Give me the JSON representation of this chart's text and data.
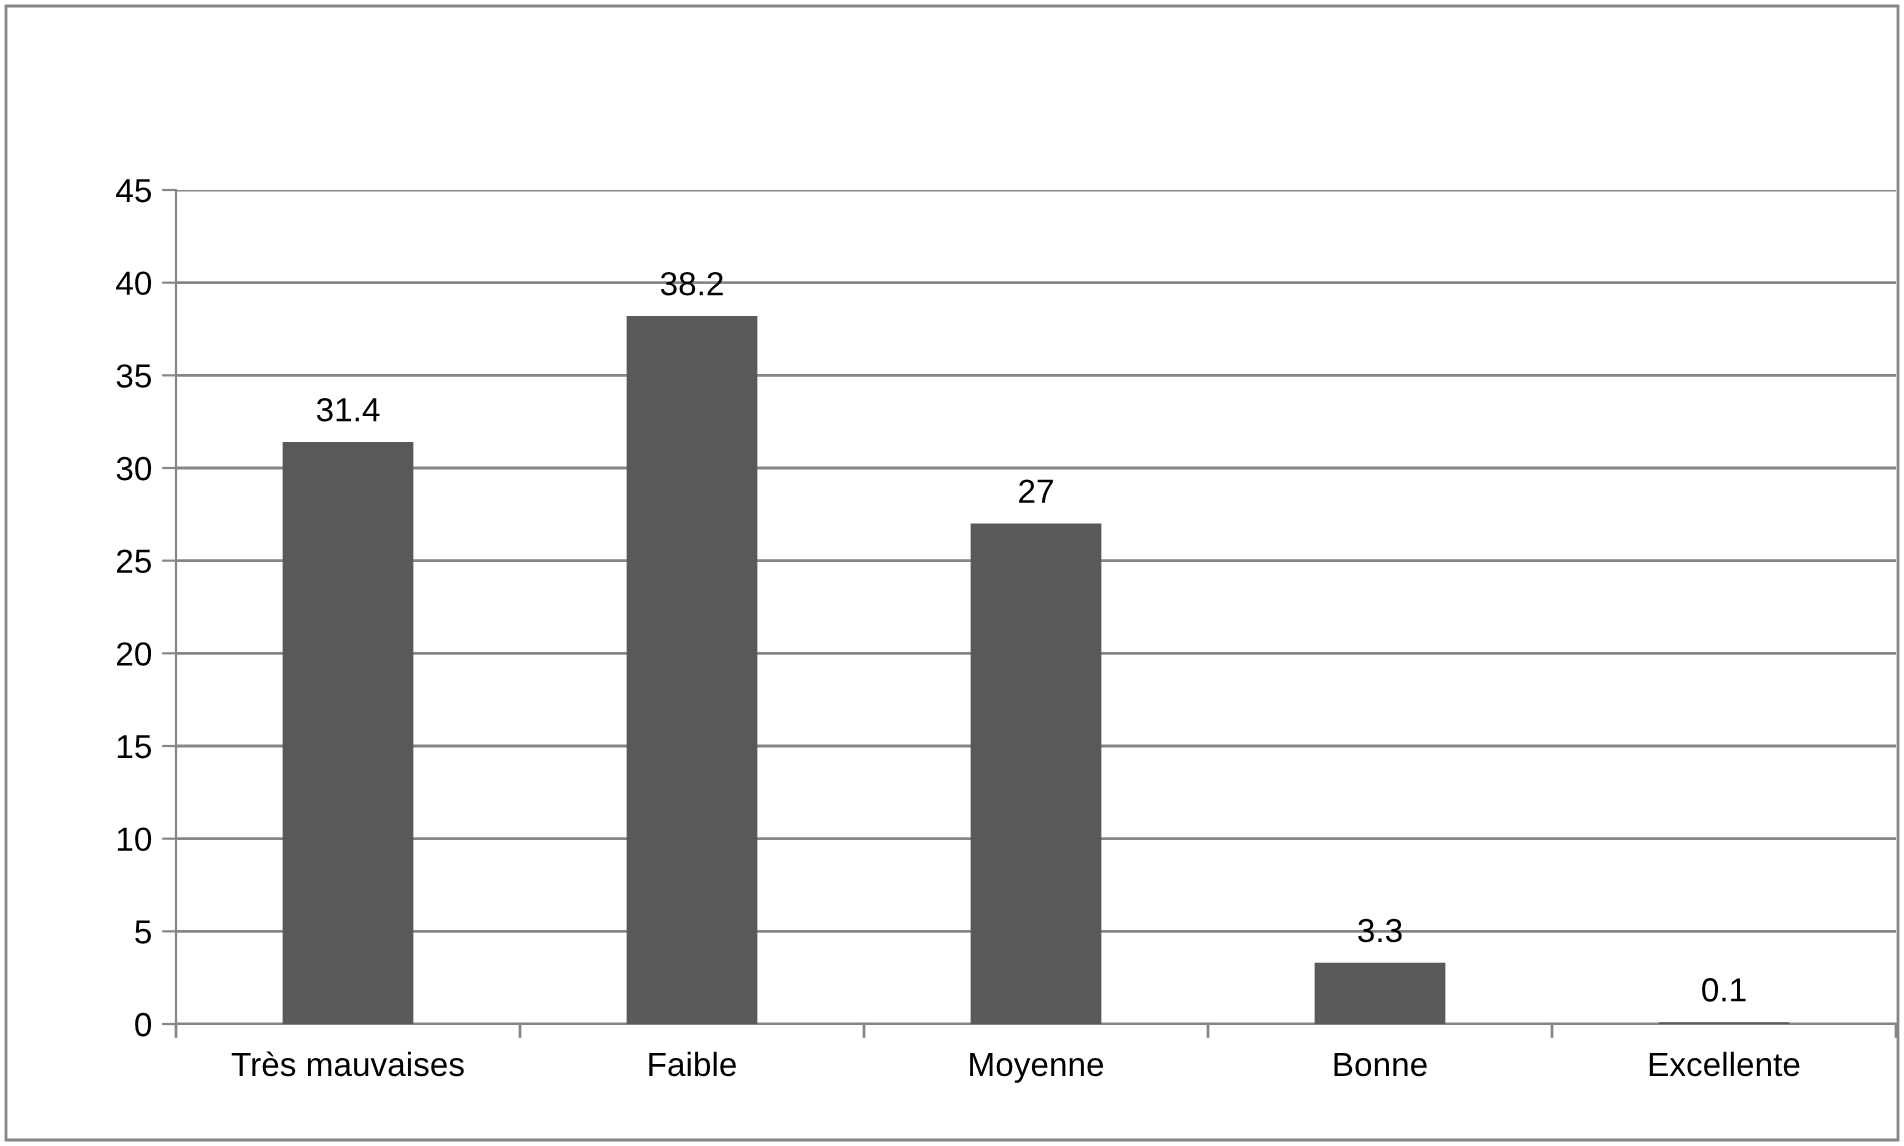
{
  "chart_data": {
    "type": "bar",
    "categories": [
      "Très mauvaises",
      "Faible",
      "Moyenne",
      "Bonne",
      "Excellente"
    ],
    "values": [
      31.4,
      38.2,
      27,
      3.3,
      0.1
    ],
    "color": "#595959",
    "ylim": [
      0,
      45
    ],
    "yticks": [
      0,
      5,
      10,
      15,
      20,
      25,
      30,
      35,
      40,
      45
    ],
    "grid": "y",
    "data_labels": true
  }
}
